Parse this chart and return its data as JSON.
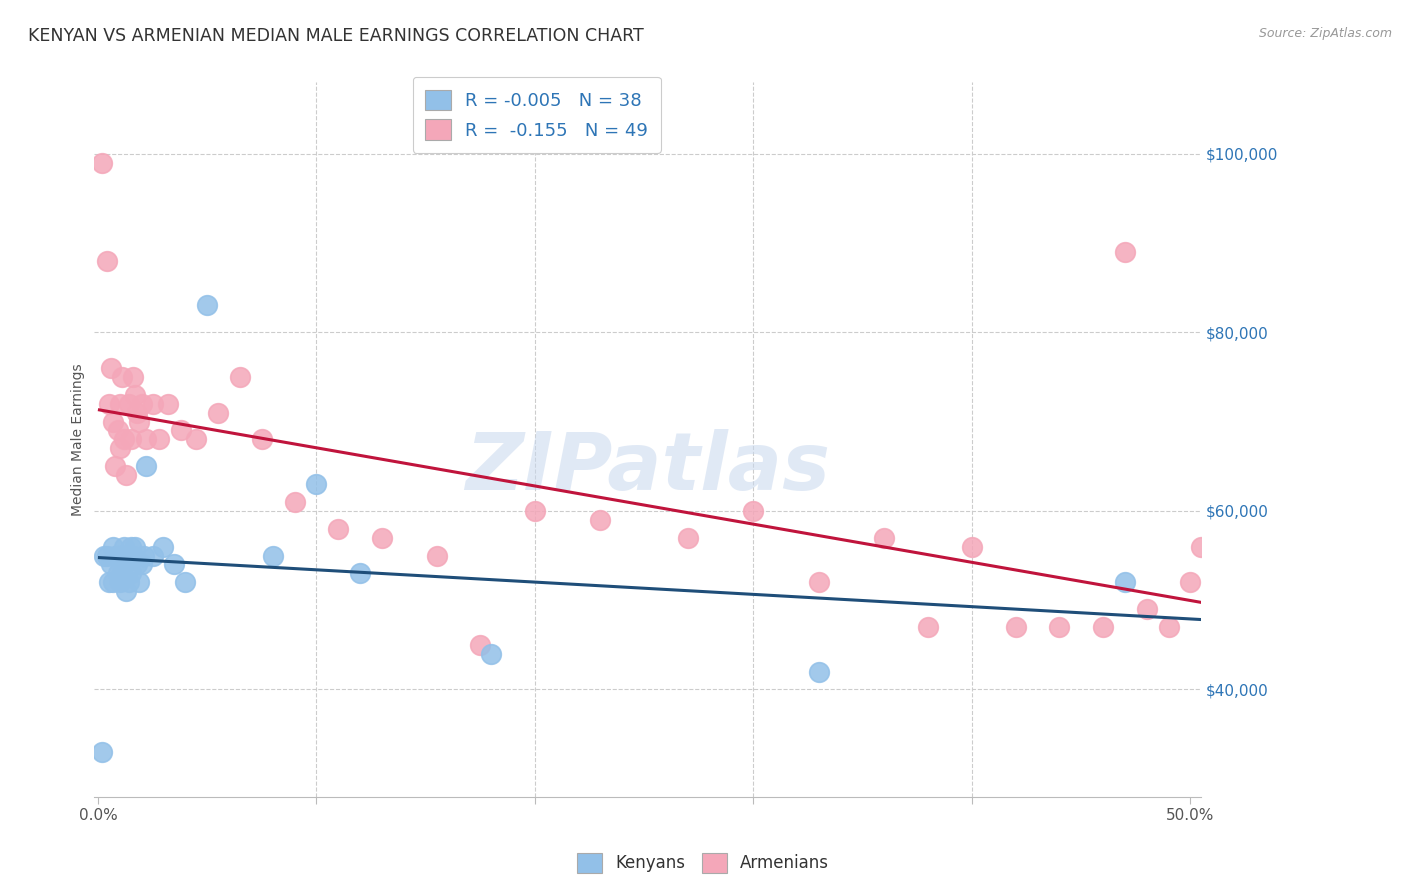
{
  "title": "KENYAN VS ARMENIAN MEDIAN MALE EARNINGS CORRELATION CHART",
  "source": "Source: ZipAtlas.com",
  "ylabel": "Median Male Earnings",
  "right_yticks": [
    "$40,000",
    "$60,000",
    "$80,000",
    "$100,000"
  ],
  "right_ytick_vals": [
    40000,
    60000,
    80000,
    100000
  ],
  "ylim": [
    28000,
    108000
  ],
  "xlim": [
    -0.002,
    0.505
  ],
  "kenyan_color": "#92c0e8",
  "armenian_color": "#f4a7b9",
  "kenyan_R": -0.005,
  "kenyan_N": 38,
  "armenian_R": -0.155,
  "armenian_N": 49,
  "kenyan_line_color": "#1f4e79",
  "armenian_line_color": "#c0143c",
  "watermark": "ZIPatlas",
  "kenyan_x": [
    0.002,
    0.003,
    0.004,
    0.005,
    0.006,
    0.007,
    0.007,
    0.008,
    0.009,
    0.009,
    0.01,
    0.01,
    0.011,
    0.012,
    0.012,
    0.013,
    0.013,
    0.014,
    0.015,
    0.015,
    0.016,
    0.017,
    0.018,
    0.019,
    0.02,
    0.021,
    0.022,
    0.025,
    0.03,
    0.035,
    0.04,
    0.05,
    0.08,
    0.1,
    0.12,
    0.18,
    0.33,
    0.47
  ],
  "kenyan_y": [
    33000,
    55000,
    55000,
    52000,
    54000,
    52000,
    56000,
    55000,
    53000,
    55000,
    52000,
    55000,
    53000,
    54000,
    56000,
    51000,
    55000,
    52000,
    56000,
    53000,
    55000,
    56000,
    54000,
    52000,
    54000,
    55000,
    65000,
    55000,
    56000,
    54000,
    52000,
    83000,
    55000,
    63000,
    53000,
    44000,
    42000,
    52000
  ],
  "armenian_x": [
    0.002,
    0.004,
    0.005,
    0.006,
    0.007,
    0.008,
    0.009,
    0.01,
    0.01,
    0.011,
    0.012,
    0.013,
    0.014,
    0.015,
    0.016,
    0.017,
    0.018,
    0.019,
    0.02,
    0.022,
    0.025,
    0.028,
    0.032,
    0.038,
    0.045,
    0.055,
    0.065,
    0.075,
    0.09,
    0.11,
    0.13,
    0.155,
    0.175,
    0.2,
    0.23,
    0.27,
    0.3,
    0.33,
    0.36,
    0.38,
    0.4,
    0.42,
    0.44,
    0.46,
    0.47,
    0.48,
    0.49,
    0.5,
    0.505
  ],
  "armenian_y": [
    99000,
    88000,
    72000,
    76000,
    70000,
    65000,
    69000,
    67000,
    72000,
    75000,
    68000,
    64000,
    72000,
    68000,
    75000,
    73000,
    71000,
    70000,
    72000,
    68000,
    72000,
    68000,
    72000,
    69000,
    68000,
    71000,
    75000,
    68000,
    61000,
    58000,
    57000,
    55000,
    45000,
    60000,
    59000,
    57000,
    60000,
    52000,
    57000,
    47000,
    56000,
    47000,
    47000,
    47000,
    89000,
    49000,
    47000,
    52000,
    56000
  ]
}
